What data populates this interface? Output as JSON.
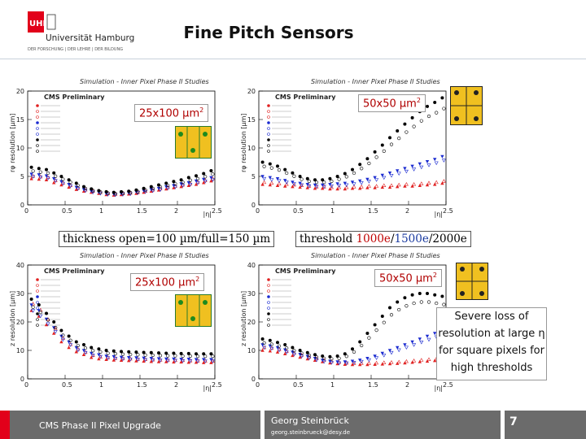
{
  "header": {
    "title": "Fine Pitch Sensors",
    "logo": {
      "mark": "UHH",
      "name": "Universität Hamburg",
      "tagline": "DER FORSCHUNG | DER LEHRE | DER BILDUNG"
    }
  },
  "panels": [
    {
      "sim_title": "Simulation - Inner Pixel Phase II Studies",
      "cms_label": "CMS Preliminary",
      "size_label": "25x100 µm",
      "size_sup": "2",
      "ylabel": "rφ resolution [µm]",
      "xlabel": "|η|"
    },
    {
      "sim_title": "Simulation - Inner Pixel Phase II Studies",
      "cms_label": "CMS Preliminary",
      "size_label": "50x50 µm",
      "size_sup": "2",
      "ylabel": "rφ resolution [µm]",
      "xlabel": "|η|"
    },
    {
      "sim_title": "Simulation - Inner Pixel Phase II Studies",
      "cms_label": "CMS Preliminary",
      "size_label": "25x100 µm",
      "size_sup": "2",
      "ylabel": "z resolution [µm]",
      "xlabel": "|η|"
    },
    {
      "sim_title": "Simulation - Inner Pixel Phase II Studies",
      "cms_label": "CMS Preliminary",
      "size_label": "50x50 µm",
      "size_sup": "2",
      "ylabel": "z resolution [µm]",
      "xlabel": "|η|"
    }
  ],
  "captions": {
    "thickness": "thickness open=100 µm/full=150 µm",
    "threshold_prefix": "threshold ",
    "threshold_1": "1000e",
    "threshold_sep1": "/",
    "threshold_2": "1500e",
    "threshold_sep2": "/",
    "threshold_3": "2000e"
  },
  "note": {
    "line1": "Severe loss of",
    "line2": "resolution at large η",
    "line3": "for square pixels for",
    "line4": "high thresholds"
  },
  "footer": {
    "left": "CMS Phase II Pixel Upgrade",
    "author": "Georg Steinbrück",
    "email": "georg.steinbrueck@desy.de",
    "page": "7"
  },
  "colors": {
    "uhh_red": "#e2001a",
    "footer_gray": "#6b6b6b",
    "series_red": "#e02020",
    "series_blue": "#1a2ad0",
    "series_black": "#000000",
    "threshold_1": "#c00000",
    "threshold_2": "#1a3aa0",
    "threshold_3": "#000000",
    "sensor_yellow": "#f0c020",
    "sensor_green": "#1e8a1e"
  },
  "chart_data": [
    {
      "type": "scatter",
      "title": "Simulation - Inner Pixel Phase II Studies",
      "ylabel": "rφ resolution [µm]",
      "xlabel": "|η|",
      "xlim": [
        0,
        2.5
      ],
      "ylim": [
        0,
        20
      ],
      "xticks": [
        "0",
        "0.5",
        "1",
        "1.5",
        "2",
        "2.5"
      ],
      "yticks": [
        "0",
        "5",
        "10",
        "15",
        "20"
      ],
      "x": [
        0.05,
        0.15,
        0.25,
        0.35,
        0.45,
        0.55,
        0.65,
        0.75,
        0.85,
        0.95,
        1.05,
        1.15,
        1.25,
        1.35,
        1.45,
        1.55,
        1.65,
        1.75,
        1.85,
        1.95,
        2.05,
        2.15,
        2.25,
        2.35,
        2.45
      ],
      "series": [
        {
          "color": "#e02020",
          "marker": "triangle",
          "values": [
            4.6,
            4.5,
            4.4,
            3.9,
            3.5,
            3.1,
            2.7,
            2.4,
            2.2,
            2.0,
            1.8,
            1.7,
            1.8,
            1.9,
            2.0,
            2.2,
            2.4,
            2.6,
            2.8,
            3.0,
            3.2,
            3.4,
            3.6,
            3.9,
            4.2
          ]
        },
        {
          "color": "#1a2ad0",
          "marker": "triangle-down",
          "values": [
            5.4,
            5.3,
            5.1,
            4.6,
            4.1,
            3.6,
            3.1,
            2.7,
            2.4,
            2.2,
            2.0,
            1.9,
            2.0,
            2.1,
            2.3,
            2.5,
            2.7,
            2.9,
            3.2,
            3.4,
            3.7,
            3.9,
            4.2,
            4.5,
            4.8
          ]
        },
        {
          "color": "#000000",
          "marker": "circle",
          "values": [
            6.6,
            6.4,
            6.2,
            5.6,
            5.0,
            4.4,
            3.8,
            3.2,
            2.8,
            2.5,
            2.3,
            2.2,
            2.3,
            2.4,
            2.6,
            2.9,
            3.2,
            3.5,
            3.8,
            4.1,
            4.4,
            4.8,
            5.1,
            5.5,
            6.0
          ]
        }
      ]
    },
    {
      "type": "scatter",
      "title": "Simulation - Inner Pixel Phase II Studies",
      "ylabel": "rφ resolution [µm]",
      "xlabel": "|η|",
      "xlim": [
        0,
        2.5
      ],
      "ylim": [
        0,
        20
      ],
      "xticks": [
        "0",
        "0.5",
        "1",
        "1.5",
        "2",
        "2.5"
      ],
      "yticks": [
        "0",
        "5",
        "10",
        "15",
        "20"
      ],
      "x": [
        0.05,
        0.15,
        0.25,
        0.35,
        0.45,
        0.55,
        0.65,
        0.75,
        0.85,
        0.95,
        1.05,
        1.15,
        1.25,
        1.35,
        1.45,
        1.55,
        1.65,
        1.75,
        1.85,
        1.95,
        2.05,
        2.15,
        2.25,
        2.35,
        2.45
      ],
      "series": [
        {
          "color": "#e02020",
          "marker": "triangle",
          "values": [
            3.6,
            3.5,
            3.4,
            3.3,
            3.2,
            3.1,
            3.0,
            2.9,
            2.9,
            2.8,
            2.8,
            2.8,
            2.9,
            2.9,
            3.0,
            3.0,
            3.1,
            3.1,
            3.2,
            3.3,
            3.3,
            3.4,
            3.5,
            3.6,
            3.8
          ]
        },
        {
          "color": "#1a2ad0",
          "marker": "triangle-down",
          "values": [
            5.0,
            4.8,
            4.6,
            4.3,
            4.0,
            3.8,
            3.6,
            3.5,
            3.5,
            3.6,
            3.7,
            3.8,
            4.0,
            4.2,
            4.5,
            4.8,
            5.2,
            5.6,
            6.0,
            6.4,
            6.8,
            7.2,
            7.6,
            8.0,
            8.5
          ]
        },
        {
          "color": "#000000",
          "marker": "circle",
          "values": [
            7.5,
            7.2,
            6.8,
            6.2,
            5.6,
            5.0,
            4.6,
            4.4,
            4.4,
            4.6,
            5.0,
            5.5,
            6.2,
            7.1,
            8.1,
            9.3,
            10.5,
            11.8,
            13.0,
            14.2,
            15.3,
            16.4,
            17.3,
            18.0,
            18.8
          ]
        }
      ]
    },
    {
      "type": "scatter",
      "title": "Simulation - Inner Pixel Phase II Studies",
      "ylabel": "z resolution [µm]",
      "xlabel": "|η|",
      "xlim": [
        0,
        2.5
      ],
      "ylim": [
        0,
        40
      ],
      "xticks": [
        "0",
        "0.5",
        "1",
        "1.5",
        "2",
        "2.5"
      ],
      "yticks": [
        "0",
        "10",
        "20",
        "30",
        "40"
      ],
      "x": [
        0.05,
        0.15,
        0.25,
        0.35,
        0.45,
        0.55,
        0.65,
        0.75,
        0.85,
        0.95,
        1.05,
        1.15,
        1.25,
        1.35,
        1.45,
        1.55,
        1.65,
        1.75,
        1.85,
        1.95,
        2.05,
        2.15,
        2.25,
        2.35,
        2.45
      ],
      "series": [
        {
          "color": "#e02020",
          "marker": "triangle",
          "values": [
            24,
            22,
            19,
            16,
            13,
            11,
            9.5,
            8.5,
            7.5,
            7.0,
            6.8,
            6.6,
            6.5,
            6.4,
            6.3,
            6.2,
            6.1,
            6.0,
            6.0,
            5.9,
            5.9,
            5.8,
            5.8,
            5.7,
            5.7
          ]
        },
        {
          "color": "#1a2ad0",
          "marker": "triangle-down",
          "values": [
            26,
            24,
            21,
            18,
            15,
            13,
            11,
            10,
            9.0,
            8.5,
            8.0,
            7.8,
            7.6,
            7.5,
            7.4,
            7.3,
            7.2,
            7.1,
            7.0,
            7.0,
            6.9,
            6.9,
            6.8,
            6.8,
            6.8
          ]
        },
        {
          "color": "#000000",
          "marker": "circle",
          "values": [
            28,
            26,
            23,
            20,
            17,
            15,
            13,
            12,
            11,
            10.5,
            10,
            9.8,
            9.6,
            9.5,
            9.4,
            9.3,
            9.2,
            9.1,
            9.0,
            9.0,
            8.9,
            8.9,
            8.8,
            8.8,
            8.8
          ]
        }
      ]
    },
    {
      "type": "scatter",
      "title": "Simulation - Inner Pixel Phase II Studies",
      "ylabel": "z resolution [µm]",
      "xlabel": "|η|",
      "xlim": [
        0,
        2.5
      ],
      "ylim": [
        0,
        40
      ],
      "xticks": [
        "0",
        "0.5",
        "1",
        "1.5",
        "2",
        "2.5"
      ],
      "yticks": [
        "0",
        "10",
        "20",
        "30",
        "40"
      ],
      "x": [
        0.05,
        0.15,
        0.25,
        0.35,
        0.45,
        0.55,
        0.65,
        0.75,
        0.85,
        0.95,
        1.05,
        1.15,
        1.25,
        1.35,
        1.45,
        1.55,
        1.65,
        1.75,
        1.85,
        1.95,
        2.05,
        2.15,
        2.25,
        2.35,
        2.45
      ],
      "series": [
        {
          "color": "#e02020",
          "marker": "triangle",
          "values": [
            10,
            9.8,
            9.4,
            8.8,
            8.2,
            7.6,
            7.0,
            6.5,
            6.0,
            5.6,
            5.3,
            5.1,
            5.0,
            5.0,
            5.0,
            5.1,
            5.2,
            5.3,
            5.4,
            5.6,
            5.8,
            6.0,
            6.2,
            6.4,
            6.6
          ]
        },
        {
          "color": "#1a2ad0",
          "marker": "triangle-down",
          "values": [
            12,
            11.6,
            11,
            10.2,
            9.4,
            8.6,
            7.9,
            7.2,
            6.6,
            6.2,
            6.0,
            6.0,
            6.2,
            6.6,
            7.2,
            8.0,
            9.0,
            10,
            11,
            12,
            13,
            14,
            15,
            16,
            17
          ]
        },
        {
          "color": "#000000",
          "marker": "circle",
          "values": [
            14,
            13.5,
            12.8,
            12,
            11,
            10,
            9.2,
            8.5,
            8.0,
            7.8,
            8.0,
            8.8,
            10.5,
            13,
            16,
            19,
            22,
            25,
            27,
            28.5,
            29.5,
            30,
            30,
            29.5,
            29
          ]
        }
      ]
    }
  ]
}
